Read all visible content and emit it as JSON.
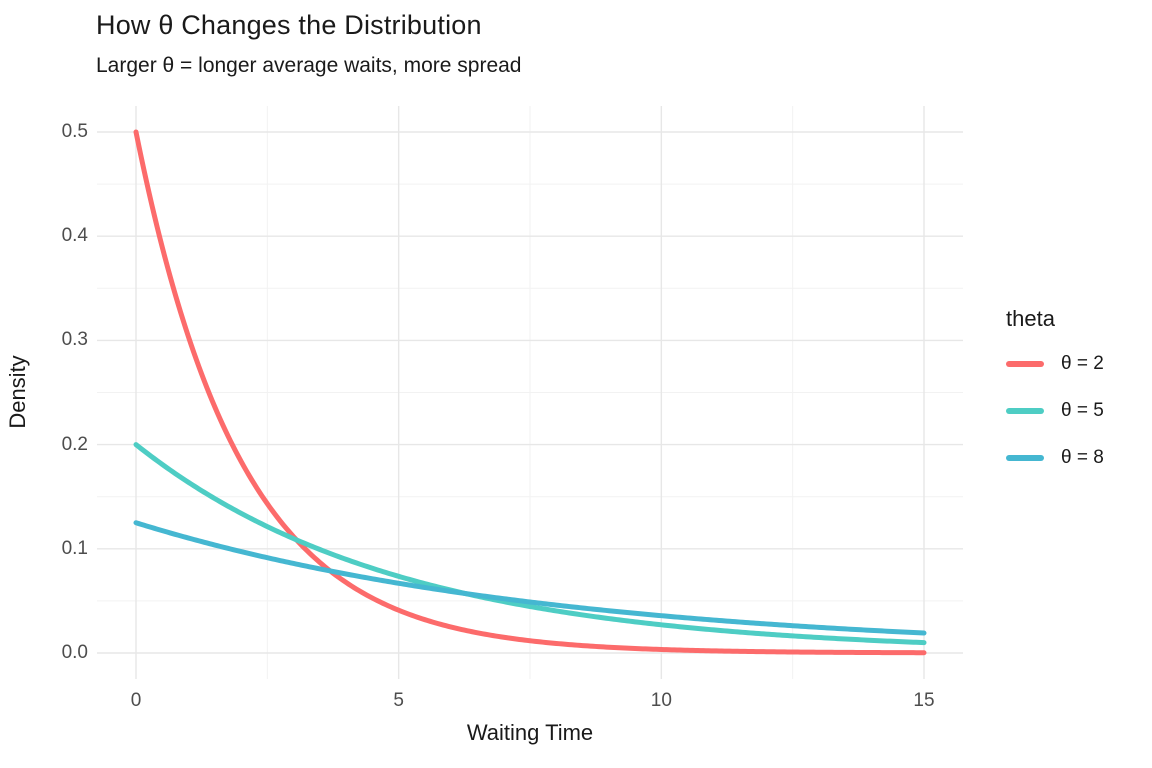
{
  "title": "How θ Changes the Distribution",
  "subtitle": "Larger θ = longer average waits, more spread",
  "chart_data": {
    "type": "line",
    "title": "How θ Changes the Distribution",
    "subtitle": "Larger θ = longer average waits, more spread",
    "xlabel": "Waiting Time",
    "ylabel": "Density",
    "xlim": [
      0,
      15
    ],
    "ylim": [
      0,
      0.5
    ],
    "x_ticks": [
      0,
      5,
      10,
      15
    ],
    "x_tick_labels": [
      "0",
      "5",
      "10",
      "15"
    ],
    "x_minor_ticks": [
      2.5,
      7.5,
      12.5
    ],
    "y_ticks": [
      0,
      0.1,
      0.2,
      0.3,
      0.4,
      0.5
    ],
    "y_tick_labels": [
      "0.0",
      "0.1",
      "0.2",
      "0.3",
      "0.4",
      "0.5"
    ],
    "y_minor_ticks": [
      0.05,
      0.15,
      0.25,
      0.35,
      0.45
    ],
    "grid": true,
    "grid_major_color": "#e7e7e7",
    "grid_minor_color": "#f2f2f2",
    "legend_position": "right",
    "legend_title": "theta",
    "curve_formula": "density = (1/theta) * exp(-x/theta)",
    "series": [
      {
        "name": "θ = 2",
        "theta": 2,
        "color": "#FC6B6B",
        "x": [
          0,
          1,
          2,
          3,
          4,
          5,
          6,
          7,
          8,
          9,
          10,
          11,
          12,
          13,
          14,
          15
        ],
        "values": [
          0.5,
          0.30327,
          0.18394,
          0.11157,
          0.06767,
          0.04104,
          0.02489,
          0.0151,
          0.00916,
          0.00555,
          0.00337,
          0.00204,
          0.00124,
          0.00075,
          0.00046,
          0.00028
        ]
      },
      {
        "name": "θ = 5",
        "theta": 5,
        "color": "#4ECDC4",
        "x": [
          0,
          1,
          2,
          3,
          4,
          5,
          6,
          7,
          8,
          9,
          10,
          11,
          12,
          13,
          14,
          15
        ],
        "values": [
          0.2,
          0.16375,
          0.13406,
          0.10976,
          0.08987,
          0.07358,
          0.06024,
          0.04932,
          0.04038,
          0.03306,
          0.02707,
          0.02216,
          0.01814,
          0.01485,
          0.01216,
          0.00996
        ]
      },
      {
        "name": "θ = 8",
        "theta": 8,
        "color": "#45B7D1",
        "x": [
          0,
          1,
          2,
          3,
          4,
          5,
          6,
          7,
          8,
          9,
          10,
          11,
          12,
          13,
          14,
          15
        ],
        "values": [
          0.125,
          0.11031,
          0.09735,
          0.08591,
          0.07581,
          0.0669,
          0.05904,
          0.0521,
          0.04598,
          0.04057,
          0.03581,
          0.0316,
          0.02788,
          0.02461,
          0.02172,
          0.01917
        ]
      }
    ]
  }
}
